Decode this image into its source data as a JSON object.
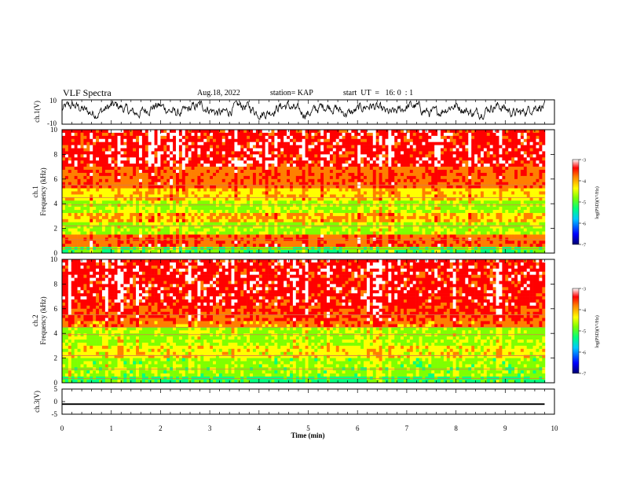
{
  "header": {
    "title": "VLF Spectra",
    "date": "Aug.18, 2022",
    "station": "station= KAP",
    "start": "start  UT  =   16: 0  : 1"
  },
  "chart_data": [
    {
      "type": "line",
      "panel": "ch1-waveform",
      "ylabel": "ch.1(V)",
      "ylim": [
        -10,
        10
      ],
      "ytick_labels": [
        "10",
        "-10"
      ],
      "x_range_min": [
        0,
        9.8
      ],
      "series": [
        {
          "values_description_free": true,
          "approx_range": [
            -5,
            8
          ]
        }
      ]
    },
    {
      "type": "heatmap",
      "panel": "ch1-spectrogram",
      "ylabel": "ch.1",
      "ylabel2": "Frequency  (kHz)",
      "ylim": [
        0,
        10
      ],
      "ytick_labels": [
        "0",
        "2",
        "4",
        "6",
        "8",
        "10"
      ],
      "colorbar": {
        "label": "log(PSD)(V²/Hz)",
        "range": [
          -7,
          -3
        ],
        "tick_labels": [
          "-3",
          "-4",
          "-5",
          "-6",
          "-7"
        ]
      }
    },
    {
      "type": "heatmap",
      "panel": "ch2-spectrogram",
      "ylabel": "ch.2",
      "ylabel2": "Frequency  (kHz)",
      "ylim": [
        0,
        10
      ],
      "ytick_labels": [
        "0",
        "2",
        "4",
        "6",
        "8",
        "10"
      ],
      "colorbar": {
        "label": "log(PSD)(V²/Hz)",
        "range": [
          -7,
          -3
        ],
        "tick_labels": [
          "-3",
          "-4",
          "-5",
          "-6",
          "-7"
        ]
      }
    },
    {
      "type": "line",
      "panel": "ch3-waveform",
      "ylabel": "ch.3(V)",
      "ylim": [
        -5,
        5
      ],
      "ytick_labels": [
        "5",
        "0",
        "-5"
      ],
      "series": [
        {
          "level": -1,
          "band": [
            -1.3,
            -0.7
          ]
        }
      ]
    }
  ],
  "xaxis": {
    "label": "Time  (min)",
    "range": [
      0,
      10
    ],
    "tick_labels": [
      "0",
      "1",
      "2",
      "3",
      "4",
      "5",
      "6",
      "7",
      "8",
      "9",
      "10"
    ]
  },
  "colors": {
    "colormap": [
      "#000070",
      "#0000ff",
      "#00c8ff",
      "#00ff7f",
      "#7fff00",
      "#ffff00",
      "#ff7f00",
      "#ff0000",
      "#ffffff"
    ]
  }
}
